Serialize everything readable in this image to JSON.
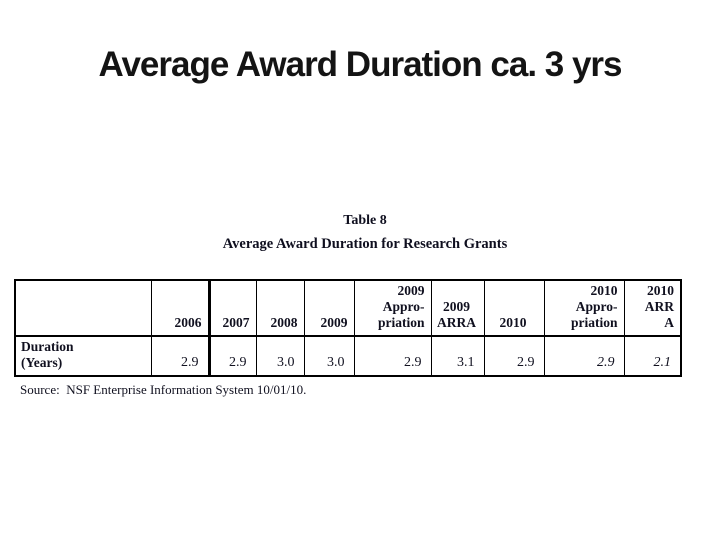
{
  "slide_title": "Average Award Duration ca. 3 yrs",
  "table": {
    "caption": {
      "line1": "Table 8",
      "line2": "Average Award Duration for Research Grants"
    },
    "header": [
      {
        "lines": [
          ""
        ]
      },
      {
        "lines": [
          "2006"
        ]
      },
      {
        "lines": [
          "2007"
        ]
      },
      {
        "lines": [
          "2008"
        ]
      },
      {
        "lines": [
          "2009"
        ]
      },
      {
        "lines": [
          "2009",
          "Appro-",
          "priation"
        ]
      },
      {
        "lines": [
          "2009",
          "ARRA"
        ]
      },
      {
        "lines": [
          "2010"
        ]
      },
      {
        "lines": [
          "2010",
          "Appro-",
          "priation"
        ]
      },
      {
        "lines": [
          "2010",
          "ARR",
          "A"
        ]
      }
    ],
    "rows": [
      {
        "label_lines": [
          "Duration",
          "(Years)"
        ],
        "values": [
          "2.9",
          "2.9",
          "3.0",
          "3.0",
          "2.9",
          "3.1",
          "2.9",
          "2.9",
          "2.1"
        ]
      }
    ],
    "source": "Source:  NSF Enterprise Information System 10/01/10."
  },
  "chart_data": {
    "type": "table",
    "title": "Table 8 — Average Award Duration for Research Grants",
    "categories": [
      "2006",
      "2007",
      "2008",
      "2009",
      "2009 Appropriation",
      "2009 ARRA",
      "2010",
      "2010 Appropriation",
      "2010 ARRA"
    ],
    "series": [
      {
        "name": "Duration (Years)",
        "values": [
          2.9,
          2.9,
          3.0,
          3.0,
          2.9,
          3.1,
          2.9,
          2.9,
          2.1
        ]
      }
    ],
    "source": "NSF Enterprise Information System 10/01/10"
  },
  "colors": {
    "background": "#ffffff",
    "text": "#10101f",
    "border": "#000000"
  }
}
